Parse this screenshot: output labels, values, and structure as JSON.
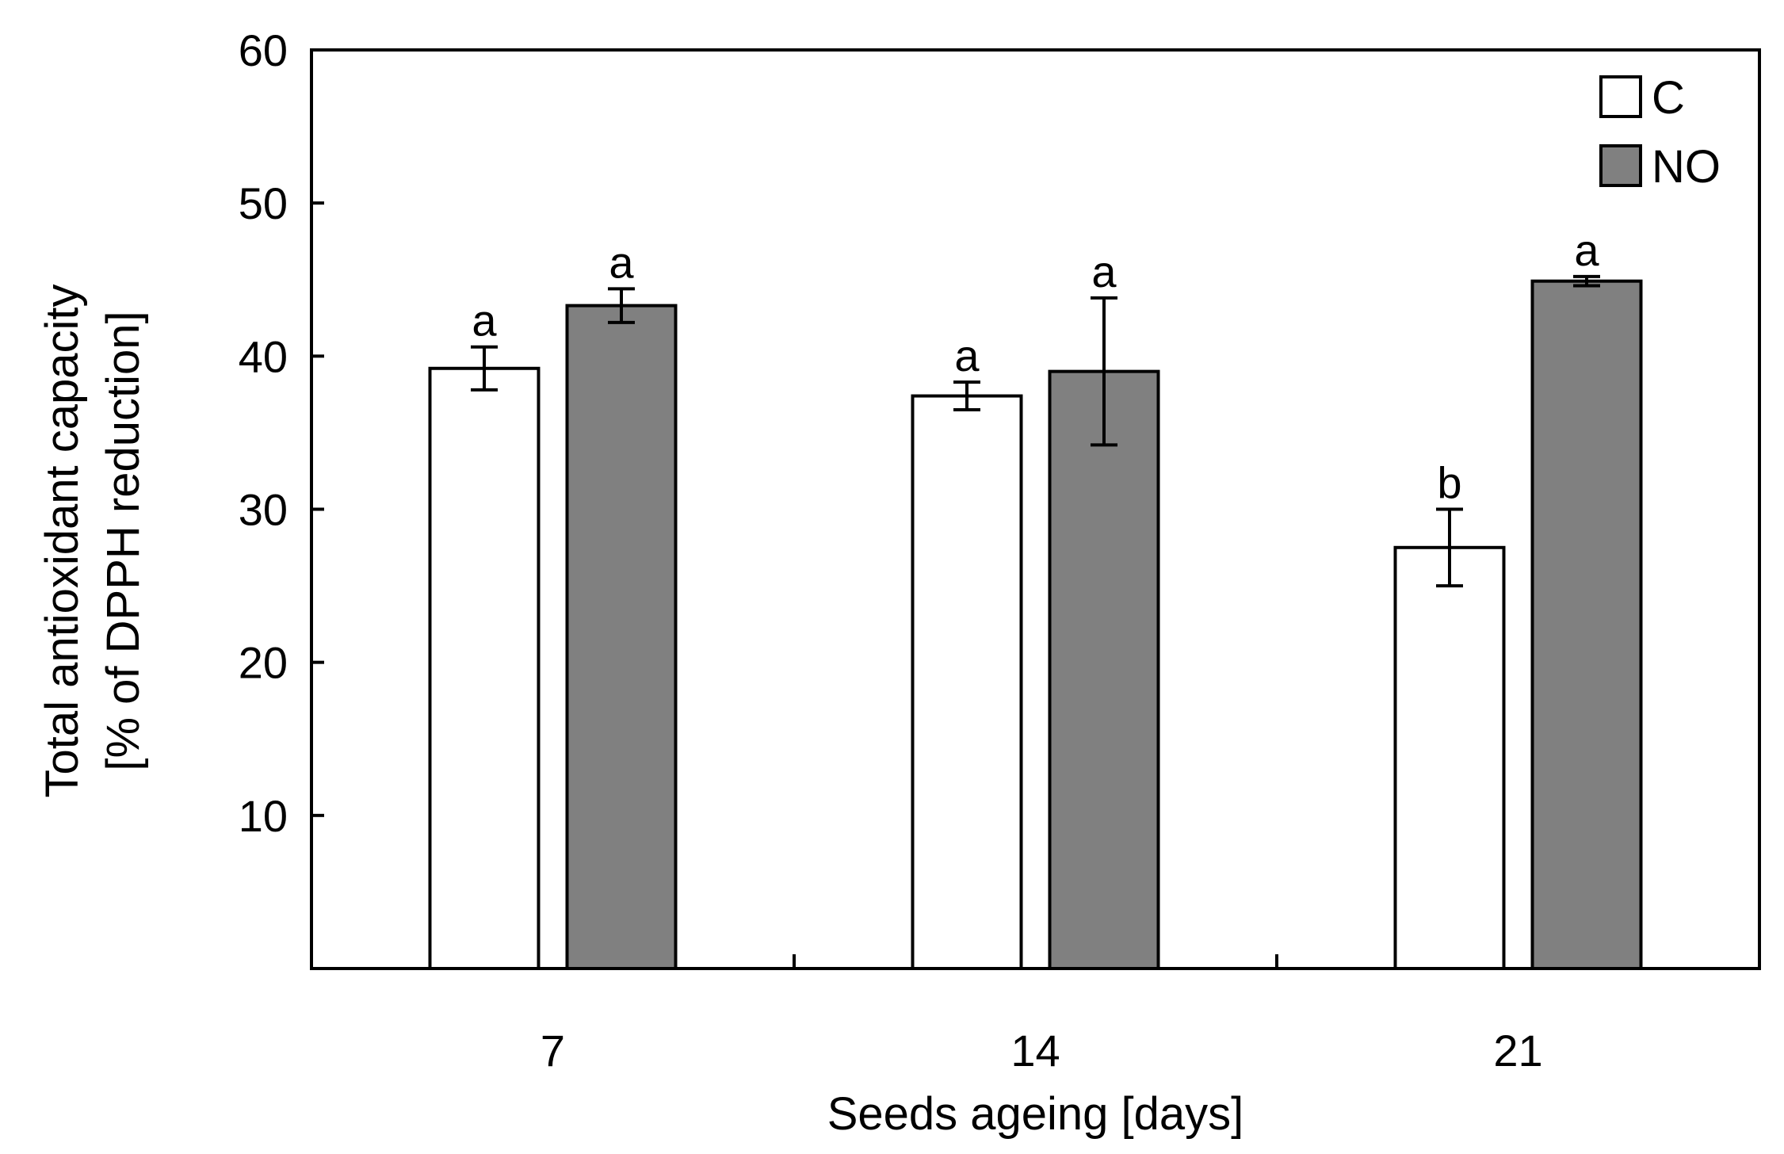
{
  "chart_data": {
    "type": "bar",
    "title": "",
    "xlabel": "Seeds ageing [days]",
    "ylabel": [
      "Total antioxidant capacity",
      "[% of DPPH reduction]"
    ],
    "ylim": [
      0,
      60
    ],
    "yticks": [
      10,
      20,
      30,
      40,
      50,
      60
    ],
    "categories": [
      "7",
      "14",
      "21"
    ],
    "legend_position": "top-right",
    "grid": false,
    "series": [
      {
        "name": "C",
        "color": "#ffffff",
        "values": [
          39.2,
          37.4,
          27.5
        ],
        "errors": [
          1.4,
          0.9,
          2.5
        ],
        "labels": [
          "a",
          "a",
          "b"
        ]
      },
      {
        "name": "NO",
        "color": "#808080",
        "values": [
          43.3,
          39.0,
          44.9
        ],
        "errors": [
          1.1,
          4.8,
          0.3
        ],
        "labels": [
          "a",
          "a",
          "a"
        ]
      }
    ]
  }
}
